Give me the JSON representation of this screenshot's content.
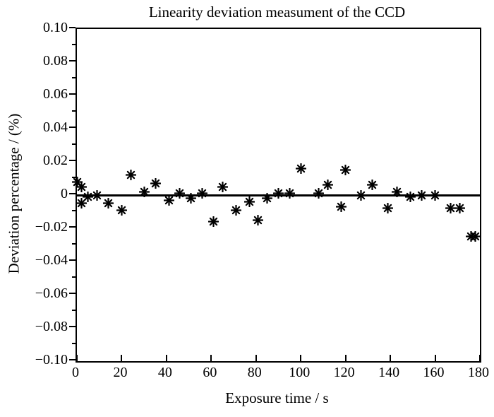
{
  "figure": {
    "background": "#ffffff",
    "foreground": "#000000"
  },
  "chart_data": {
    "type": "scatter",
    "title": "Linearity deviation measument of the CCD",
    "xlabel": "Exposure time / s",
    "ylabel": "Deviation percentage / (%)",
    "xlim": [
      0,
      180
    ],
    "ylim": [
      -0.1,
      0.1
    ],
    "xticks": [
      0,
      20,
      40,
      60,
      80,
      100,
      120,
      140,
      160,
      180
    ],
    "ytick_values": [
      0.1,
      0.08,
      0.06,
      0.04,
      0.02,
      0,
      -0.02,
      -0.04,
      -0.06,
      -0.08,
      -0.1
    ],
    "ytick_labels": [
      "0.10",
      "0.08",
      "0.06",
      "0.04",
      "0.02",
      "0",
      "−0.02",
      "−0.04",
      "−0.06",
      "−0.08",
      "−0.10"
    ],
    "y_minor_tick_step": 0.01,
    "grid": false,
    "legend": null,
    "zero_line": true,
    "marker": "eight-spoked-asterisk",
    "marker_color": "#000000",
    "points": [
      [
        0,
        0.008
      ],
      [
        2,
        0.005
      ],
      [
        2,
        -0.005
      ],
      [
        5,
        -0.001
      ],
      [
        9,
        0.0
      ],
      [
        14,
        -0.005
      ],
      [
        20,
        -0.009
      ],
      [
        24,
        0.012
      ],
      [
        30,
        0.002
      ],
      [
        35,
        0.007
      ],
      [
        41,
        -0.003
      ],
      [
        46,
        0.001
      ],
      [
        51,
        -0.002
      ],
      [
        56,
        0.001
      ],
      [
        61,
        -0.016
      ],
      [
        65,
        0.005
      ],
      [
        71,
        -0.009
      ],
      [
        77,
        -0.004
      ],
      [
        81,
        -0.015
      ],
      [
        85,
        -0.002
      ],
      [
        90,
        0.001
      ],
      [
        95,
        0.001
      ],
      [
        100,
        0.016
      ],
      [
        108,
        0.001
      ],
      [
        112,
        0.006
      ],
      [
        118,
        -0.007
      ],
      [
        120,
        0.015
      ],
      [
        127,
        0.0
      ],
      [
        132,
        0.006
      ],
      [
        139,
        -0.008
      ],
      [
        143,
        0.002
      ],
      [
        149,
        -0.001
      ],
      [
        154,
        0.0
      ],
      [
        160,
        0.0
      ],
      [
        167,
        -0.008
      ],
      [
        171,
        -0.008
      ],
      [
        176,
        -0.025
      ],
      [
        178,
        -0.025
      ]
    ]
  }
}
